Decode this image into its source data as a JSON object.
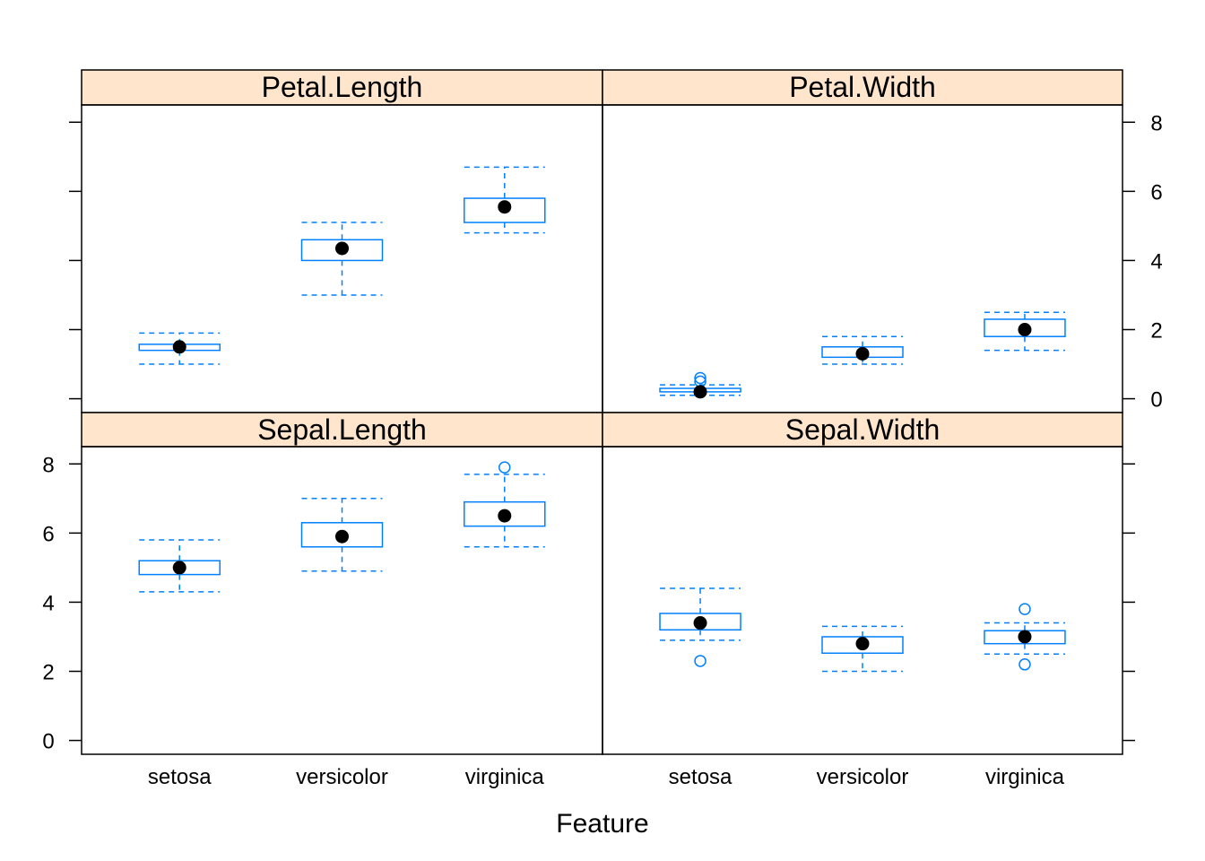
{
  "chart_data": {
    "type": "box",
    "xlabel": "Feature",
    "ylabel": "",
    "categories": [
      "setosa",
      "versicolor",
      "virginica"
    ],
    "ylim": [
      -0.4,
      8.5
    ],
    "yticks": [
      0,
      2,
      4,
      6,
      8
    ],
    "colors": {
      "box": "#0080ff",
      "strip": "#ffe5cc",
      "median_dot": "#000000",
      "frame": "#000000"
    },
    "panels": [
      {
        "title": "Petal.Length",
        "boxes": [
          {
            "category": "setosa",
            "whisker_low": 1.0,
            "q1": 1.4,
            "median": 1.5,
            "q3": 1.575,
            "whisker_high": 1.9,
            "outliers": []
          },
          {
            "category": "versicolor",
            "whisker_low": 3.0,
            "q1": 4.0,
            "median": 4.35,
            "q3": 4.6,
            "whisker_high": 5.1,
            "outliers": []
          },
          {
            "category": "virginica",
            "whisker_low": 4.8,
            "q1": 5.1,
            "median": 5.55,
            "q3": 5.8,
            "whisker_high": 6.7,
            "outliers": []
          }
        ]
      },
      {
        "title": "Petal.Width",
        "boxes": [
          {
            "category": "setosa",
            "whisker_low": 0.1,
            "q1": 0.2,
            "median": 0.2,
            "q3": 0.3,
            "whisker_high": 0.4,
            "outliers": [
              0.5,
              0.6
            ]
          },
          {
            "category": "versicolor",
            "whisker_low": 1.0,
            "q1": 1.2,
            "median": 1.3,
            "q3": 1.5,
            "whisker_high": 1.8,
            "outliers": []
          },
          {
            "category": "virginica",
            "whisker_low": 1.4,
            "q1": 1.8,
            "median": 2.0,
            "q3": 2.3,
            "whisker_high": 2.5,
            "outliers": []
          }
        ]
      },
      {
        "title": "Sepal.Length",
        "boxes": [
          {
            "category": "setosa",
            "whisker_low": 4.3,
            "q1": 4.8,
            "median": 5.0,
            "q3": 5.2,
            "whisker_high": 5.8,
            "outliers": []
          },
          {
            "category": "versicolor",
            "whisker_low": 4.9,
            "q1": 5.6,
            "median": 5.9,
            "q3": 6.3,
            "whisker_high": 7.0,
            "outliers": []
          },
          {
            "category": "virginica",
            "whisker_low": 5.6,
            "q1": 6.2,
            "median": 6.5,
            "q3": 6.9,
            "whisker_high": 7.7,
            "outliers": [
              7.9
            ]
          }
        ]
      },
      {
        "title": "Sepal.Width",
        "boxes": [
          {
            "category": "setosa",
            "whisker_low": 2.9,
            "q1": 3.2,
            "median": 3.4,
            "q3": 3.675,
            "whisker_high": 4.4,
            "outliers": [
              2.3
            ]
          },
          {
            "category": "versicolor",
            "whisker_low": 2.0,
            "q1": 2.525,
            "median": 2.8,
            "q3": 3.0,
            "whisker_high": 3.3,
            "outliers": []
          },
          {
            "category": "virginica",
            "whisker_low": 2.5,
            "q1": 2.8,
            "median": 3.0,
            "q3": 3.175,
            "whisker_high": 3.4,
            "outliers": [
              2.2,
              3.8
            ]
          }
        ]
      }
    ]
  }
}
